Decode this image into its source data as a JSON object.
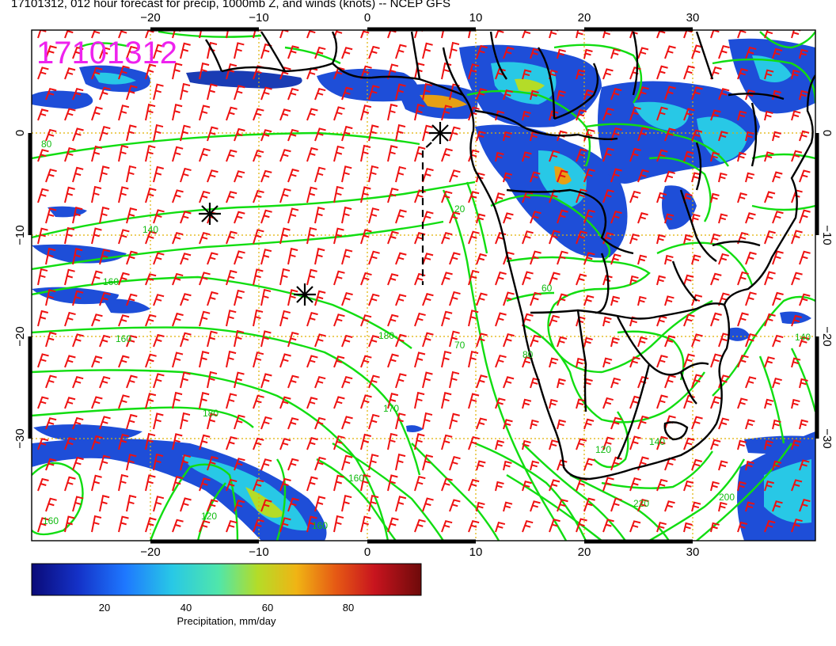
{
  "header": {
    "title": "17101312, 012 hour forecast for precip, 1000mb Z, and winds (knots) -- NCEP GFS",
    "stamp": "17101312"
  },
  "axes": {
    "lon_ticks": [
      "−20",
      "−10",
      "0",
      "10",
      "20",
      "30"
    ],
    "lat_ticks": [
      "0",
      "−10",
      "−20",
      "−30"
    ]
  },
  "contour_labels": [
    "80",
    "140",
    "160",
    "160",
    "180",
    "170",
    "180",
    "160",
    "20",
    "60",
    "70",
    "80",
    "120",
    "120",
    "140",
    "160",
    "200",
    "220",
    "140",
    "160"
  ],
  "colorbar": {
    "label": "Precipitation, mm/day",
    "ticks": [
      "20",
      "40",
      "60",
      "80"
    ],
    "stops": [
      "#0a0a78",
      "#1432c8",
      "#1e78ff",
      "#28c8e6",
      "#50e6aa",
      "#b4dc28",
      "#f0b414",
      "#e65a14",
      "#c8141e",
      "#6e0a0a"
    ]
  },
  "colors": {
    "contour": "#11dd11",
    "barb": "#ee1111",
    "stamp": "#ee22ee",
    "grid": "#e0b000"
  }
}
